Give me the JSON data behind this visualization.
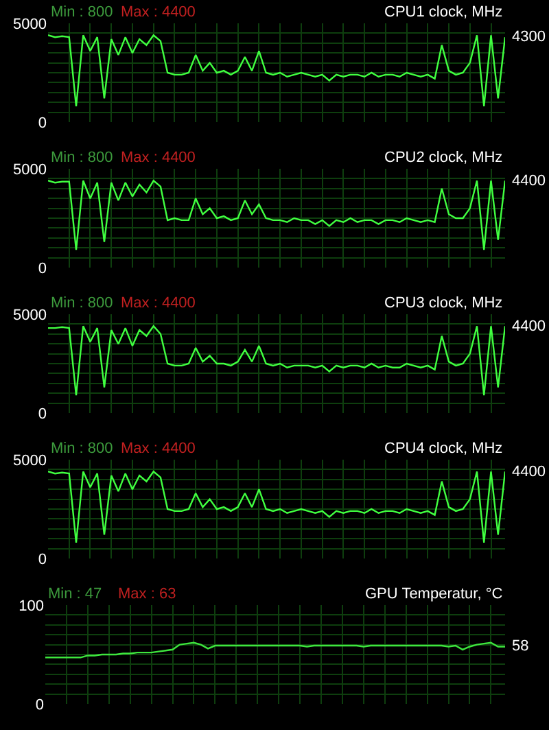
{
  "chart_data": [
    {
      "type": "line",
      "title": "CPU1 clock, MHz",
      "annotations": [
        "Min : 800",
        "Max : 4400"
      ],
      "categories": [
        null,
        null,
        null,
        null,
        null,
        null,
        null,
        null,
        null,
        null,
        null,
        null,
        null,
        null,
        null,
        null,
        null,
        null,
        null,
        null,
        null,
        null,
        null,
        null,
        null,
        null,
        null,
        null,
        null,
        null,
        null,
        null,
        null,
        null,
        null,
        null,
        null,
        null,
        null,
        null,
        null,
        null,
        null,
        null,
        null,
        null,
        null,
        null,
        null,
        null,
        null,
        null,
        null,
        null,
        null,
        null,
        null,
        null,
        null,
        null,
        null,
        null,
        null,
        null,
        null,
        null
      ],
      "series": [
        {
          "color": "#40ff40",
          "values": [
            4400,
            4300,
            4350,
            4300,
            800,
            4400,
            3600,
            4300,
            1200,
            4200,
            3400,
            4300,
            3500,
            4200,
            3900,
            4400,
            4100,
            2500,
            2400,
            2400,
            2500,
            3400,
            2600,
            3000,
            2500,
            2600,
            2400,
            2600,
            3300,
            2600,
            3600,
            2500,
            2400,
            2500,
            2300,
            2400,
            2500,
            2400,
            2300,
            2400,
            2100,
            2400,
            2300,
            2400,
            2400,
            2300,
            2500,
            2300,
            2400,
            2400,
            2300,
            2500,
            2400,
            2300,
            2400,
            2200,
            3900,
            2600,
            2400,
            2500,
            3000,
            4400,
            800,
            4400,
            1200,
            4300
          ],
          "value_labels": [
            null,
            null,
            null,
            null,
            null,
            null,
            null,
            null,
            null,
            null,
            null,
            null,
            null,
            null,
            null,
            null,
            null,
            null,
            null,
            null,
            null,
            null,
            null,
            null,
            null,
            null,
            null,
            null,
            null,
            null,
            null,
            null,
            null,
            null,
            null,
            null,
            null,
            null,
            null,
            null,
            null,
            null,
            null,
            null,
            null,
            null,
            null,
            null,
            null,
            null,
            null,
            null,
            null,
            null,
            null,
            null,
            null,
            null,
            null,
            null,
            null,
            null,
            null,
            null,
            null,
            "4300"
          ]
        }
      ],
      "ylim": [
        0,
        5000
      ],
      "yticks": [
        0,
        {
          "value": 500,
          "label": null
        },
        {
          "value": 1000,
          "label": null
        },
        {
          "value": 1500,
          "label": null
        },
        {
          "value": 2000,
          "label": null
        },
        {
          "value": 2500,
          "label": null
        },
        {
          "value": 3000,
          "label": null
        },
        {
          "value": 3500,
          "label": null
        },
        {
          "value": 4000,
          "label": null
        },
        {
          "value": 4500,
          "label": null
        },
        5000
      ],
      "grid": true
    },
    {
      "type": "line",
      "title": "CPU2 clock, MHz",
      "annotations": [
        "Min : 800",
        "Max : 4400"
      ],
      "categories": [
        null,
        null,
        null,
        null,
        null,
        null,
        null,
        null,
        null,
        null,
        null,
        null,
        null,
        null,
        null,
        null,
        null,
        null,
        null,
        null,
        null,
        null,
        null,
        null,
        null,
        null,
        null,
        null,
        null,
        null,
        null,
        null,
        null,
        null,
        null,
        null,
        null,
        null,
        null,
        null,
        null,
        null,
        null,
        null,
        null,
        null,
        null,
        null,
        null,
        null,
        null,
        null,
        null,
        null,
        null,
        null,
        null,
        null,
        null,
        null,
        null,
        null,
        null,
        null,
        null,
        null
      ],
      "series": [
        {
          "color": "#40ff40",
          "values": [
            4400,
            4300,
            4350,
            4350,
            900,
            4400,
            3500,
            4300,
            1300,
            4300,
            3400,
            4300,
            3600,
            4200,
            3800,
            4400,
            4100,
            2400,
            2500,
            2400,
            2400,
            3500,
            2700,
            3000,
            2500,
            2600,
            2400,
            2500,
            3400,
            2700,
            3200,
            2500,
            2400,
            2400,
            2300,
            2500,
            2400,
            2400,
            2200,
            2400,
            2100,
            2400,
            2300,
            2500,
            2300,
            2400,
            2400,
            2200,
            2400,
            2400,
            2300,
            2500,
            2400,
            2300,
            2400,
            2300,
            4000,
            2700,
            2500,
            2500,
            3000,
            4400,
            900,
            4400,
            1400,
            4400
          ],
          "value_labels": [
            null,
            null,
            null,
            null,
            null,
            null,
            null,
            null,
            null,
            null,
            null,
            null,
            null,
            null,
            null,
            null,
            null,
            null,
            null,
            null,
            null,
            null,
            null,
            null,
            null,
            null,
            null,
            null,
            null,
            null,
            null,
            null,
            null,
            null,
            null,
            null,
            null,
            null,
            null,
            null,
            null,
            null,
            null,
            null,
            null,
            null,
            null,
            null,
            null,
            null,
            null,
            null,
            null,
            null,
            null,
            null,
            null,
            null,
            null,
            null,
            null,
            null,
            null,
            null,
            null,
            "4400"
          ]
        }
      ],
      "ylim": [
        0,
        5000
      ],
      "yticks": [
        0,
        {
          "value": 500,
          "label": null
        },
        {
          "value": 1000,
          "label": null
        },
        {
          "value": 1500,
          "label": null
        },
        {
          "value": 2000,
          "label": null
        },
        {
          "value": 2500,
          "label": null
        },
        {
          "value": 3000,
          "label": null
        },
        {
          "value": 3500,
          "label": null
        },
        {
          "value": 4000,
          "label": null
        },
        {
          "value": 4500,
          "label": null
        },
        5000
      ],
      "grid": true
    },
    {
      "type": "line",
      "title": "CPU3 clock, MHz",
      "annotations": [
        "Min : 800",
        "Max : 4400"
      ],
      "categories": [
        null,
        null,
        null,
        null,
        null,
        null,
        null,
        null,
        null,
        null,
        null,
        null,
        null,
        null,
        null,
        null,
        null,
        null,
        null,
        null,
        null,
        null,
        null,
        null,
        null,
        null,
        null,
        null,
        null,
        null,
        null,
        null,
        null,
        null,
        null,
        null,
        null,
        null,
        null,
        null,
        null,
        null,
        null,
        null,
        null,
        null,
        null,
        null,
        null,
        null,
        null,
        null,
        null,
        null,
        null,
        null,
        null,
        null,
        null,
        null,
        null,
        null,
        null,
        null,
        null,
        null
      ],
      "series": [
        {
          "color": "#40ff40",
          "values": [
            4300,
            4300,
            4350,
            4300,
            900,
            4400,
            3600,
            4300,
            1300,
            4200,
            3500,
            4300,
            3400,
            4200,
            3900,
            4400,
            4000,
            2500,
            2400,
            2400,
            2500,
            3300,
            2600,
            2900,
            2500,
            2500,
            2400,
            2600,
            3200,
            2600,
            3400,
            2500,
            2400,
            2500,
            2300,
            2400,
            2400,
            2400,
            2300,
            2400,
            2100,
            2400,
            2300,
            2400,
            2400,
            2300,
            2500,
            2300,
            2400,
            2300,
            2300,
            2500,
            2400,
            2300,
            2400,
            2200,
            3900,
            2600,
            2400,
            2500,
            3000,
            4400,
            900,
            4400,
            1300,
            4400
          ],
          "value_labels": [
            null,
            null,
            null,
            null,
            null,
            null,
            null,
            null,
            null,
            null,
            null,
            null,
            null,
            null,
            null,
            null,
            null,
            null,
            null,
            null,
            null,
            null,
            null,
            null,
            null,
            null,
            null,
            null,
            null,
            null,
            null,
            null,
            null,
            null,
            null,
            null,
            null,
            null,
            null,
            null,
            null,
            null,
            null,
            null,
            null,
            null,
            null,
            null,
            null,
            null,
            null,
            null,
            null,
            null,
            null,
            null,
            null,
            null,
            null,
            null,
            null,
            null,
            null,
            null,
            null,
            "4400"
          ]
        }
      ],
      "ylim": [
        0,
        5000
      ],
      "yticks": [
        0,
        {
          "value": 500,
          "label": null
        },
        {
          "value": 1000,
          "label": null
        },
        {
          "value": 1500,
          "label": null
        },
        {
          "value": 2000,
          "label": null
        },
        {
          "value": 2500,
          "label": null
        },
        {
          "value": 3000,
          "label": null
        },
        {
          "value": 3500,
          "label": null
        },
        {
          "value": 4000,
          "label": null
        },
        {
          "value": 4500,
          "label": null
        },
        5000
      ],
      "grid": true
    },
    {
      "type": "line",
      "title": "CPU4 clock, MHz",
      "annotations": [
        "Min : 800",
        "Max : 4400"
      ],
      "categories": [
        null,
        null,
        null,
        null,
        null,
        null,
        null,
        null,
        null,
        null,
        null,
        null,
        null,
        null,
        null,
        null,
        null,
        null,
        null,
        null,
        null,
        null,
        null,
        null,
        null,
        null,
        null,
        null,
        null,
        null,
        null,
        null,
        null,
        null,
        null,
        null,
        null,
        null,
        null,
        null,
        null,
        null,
        null,
        null,
        null,
        null,
        null,
        null,
        null,
        null,
        null,
        null,
        null,
        null,
        null,
        null,
        null,
        null,
        null,
        null,
        null,
        null,
        null,
        null,
        null,
        null
      ],
      "series": [
        {
          "color": "#40ff40",
          "values": [
            4400,
            4300,
            4350,
            4300,
            800,
            4400,
            3600,
            4300,
            1200,
            4200,
            3400,
            4300,
            3500,
            4200,
            3900,
            4400,
            4100,
            2500,
            2400,
            2400,
            2500,
            3300,
            2600,
            3000,
            2500,
            2600,
            2400,
            2600,
            3300,
            2600,
            3500,
            2500,
            2400,
            2500,
            2300,
            2400,
            2500,
            2400,
            2300,
            2400,
            2100,
            2400,
            2300,
            2400,
            2400,
            2300,
            2500,
            2300,
            2400,
            2400,
            2300,
            2500,
            2400,
            2300,
            2400,
            2200,
            3900,
            2600,
            2400,
            2500,
            3000,
            4400,
            800,
            4400,
            1200,
            4400
          ],
          "value_labels": [
            null,
            null,
            null,
            null,
            null,
            null,
            null,
            null,
            null,
            null,
            null,
            null,
            null,
            null,
            null,
            null,
            null,
            null,
            null,
            null,
            null,
            null,
            null,
            null,
            null,
            null,
            null,
            null,
            null,
            null,
            null,
            null,
            null,
            null,
            null,
            null,
            null,
            null,
            null,
            null,
            null,
            null,
            null,
            null,
            null,
            null,
            null,
            null,
            null,
            null,
            null,
            null,
            null,
            null,
            null,
            null,
            null,
            null,
            null,
            null,
            null,
            null,
            null,
            null,
            null,
            "4400"
          ]
        }
      ],
      "ylim": [
        0,
        5000
      ],
      "yticks": [
        0,
        {
          "value": 500,
          "label": null
        },
        {
          "value": 1000,
          "label": null
        },
        {
          "value": 1500,
          "label": null
        },
        {
          "value": 2000,
          "label": null
        },
        {
          "value": 2500,
          "label": null
        },
        {
          "value": 3000,
          "label": null
        },
        {
          "value": 3500,
          "label": null
        },
        {
          "value": 4000,
          "label": null
        },
        {
          "value": 4500,
          "label": null
        },
        5000
      ],
      "grid": true
    },
    {
      "type": "line",
      "title": "GPU Temperatur, °C",
      "annotations": [
        "Min : 47",
        "Max : 63"
      ],
      "categories": [
        null,
        null,
        null,
        null,
        null,
        null,
        null,
        null,
        null,
        null,
        null,
        null,
        null,
        null,
        null,
        null,
        null,
        null,
        null,
        null,
        null,
        null,
        null,
        null,
        null,
        null,
        null,
        null,
        null,
        null,
        null,
        null,
        null,
        null,
        null,
        null,
        null,
        null,
        null,
        null,
        null,
        null,
        null,
        null,
        null,
        null,
        null,
        null,
        null,
        null,
        null,
        null,
        null,
        null,
        null,
        null,
        null,
        null,
        null,
        null,
        null,
        null,
        null,
        null,
        null,
        null
      ],
      "series": [
        {
          "color": "#3ee63e",
          "values": [
            47,
            47,
            47,
            47,
            47,
            47,
            49,
            49,
            50,
            50,
            50,
            51,
            51,
            52,
            52,
            52,
            53,
            54,
            55,
            60,
            61,
            62,
            60,
            56,
            59,
            59,
            59,
            59,
            59,
            59,
            59,
            59,
            59,
            59,
            59,
            59,
            59,
            58,
            59,
            59,
            59,
            59,
            59,
            59,
            59,
            58,
            59,
            59,
            59,
            59,
            59,
            59,
            59,
            59,
            59,
            59,
            59,
            58,
            59,
            55,
            58,
            60,
            61,
            62,
            58,
            58
          ],
          "value_labels": [
            null,
            null,
            null,
            null,
            null,
            null,
            null,
            null,
            null,
            null,
            null,
            null,
            null,
            null,
            null,
            null,
            null,
            null,
            null,
            null,
            null,
            null,
            null,
            null,
            null,
            null,
            null,
            null,
            null,
            null,
            null,
            null,
            null,
            null,
            null,
            null,
            null,
            null,
            null,
            null,
            null,
            null,
            null,
            null,
            null,
            null,
            null,
            null,
            null,
            null,
            null,
            null,
            null,
            null,
            null,
            null,
            null,
            null,
            null,
            null,
            null,
            null,
            null,
            null,
            null,
            "58"
          ]
        }
      ],
      "ylim": [
        0,
        100
      ],
      "yticks": [
        0,
        {
          "value": 10,
          "label": null
        },
        {
          "value": 20,
          "label": null
        },
        {
          "value": 30,
          "label": null
        },
        {
          "value": 40,
          "label": null
        },
        {
          "value": 50,
          "label": null
        },
        {
          "value": 60,
          "label": null
        },
        {
          "value": 70,
          "label": null
        },
        {
          "value": 80,
          "label": null
        },
        {
          "value": 90,
          "label": null
        },
        100
      ],
      "grid": true
    }
  ]
}
